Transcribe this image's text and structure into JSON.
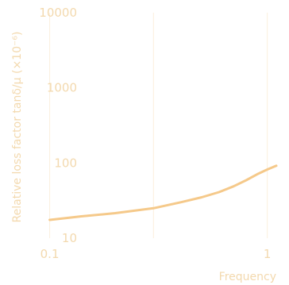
{
  "chart_data": {
    "type": "line",
    "xscale": "log",
    "yscale": "log",
    "xlim": [
      0.087,
      1.1
    ],
    "ylim": [
      10,
      10000
    ],
    "xticks": [
      0.1,
      1
    ],
    "xtick_labels": [
      "0.1",
      "1"
    ],
    "yticks": [
      10,
      100,
      1000,
      10000
    ],
    "ytick_labels": [
      "10",
      "100",
      "1000",
      "10000"
    ],
    "xlabel": "Frequency",
    "ylabel": "Relative loss factor tanδ/μ (×10⁻⁶)",
    "grid": "vertical",
    "series": [
      {
        "x": [
          0.1,
          0.14,
          0.2,
          0.3,
          0.4,
          0.5,
          0.6,
          0.7,
          0.8,
          0.9,
          1.0,
          1.1
        ],
        "y": [
          17.5,
          19.5,
          21.5,
          25,
          30,
          35,
          41,
          49,
          59,
          71,
          82,
          92
        ]
      }
    ],
    "colors": {
      "line": "#f5c98a",
      "text": "#f3d9ae",
      "grid": "#fbf0dd"
    }
  }
}
